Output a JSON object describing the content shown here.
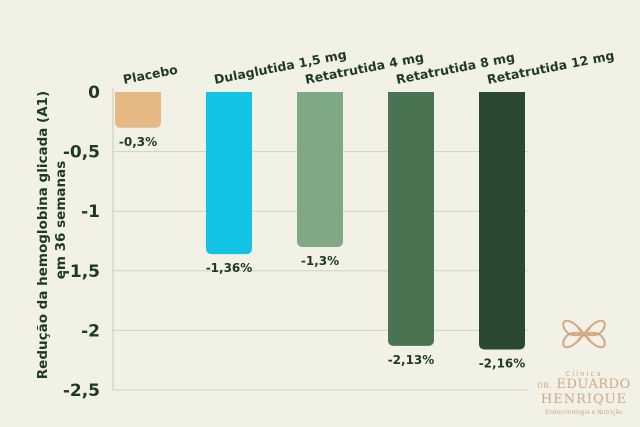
{
  "chart_data": {
    "type": "bar",
    "categories": [
      "Placebo",
      "Dulaglutida 1,5 mg",
      "Retatrutida 4 mg",
      "Retatrutida 8 mg",
      "Retatrutida 12 mg"
    ],
    "values": [
      -0.3,
      -1.36,
      -1.3,
      -2.13,
      -2.16
    ],
    "data_labels": [
      "-0,3%",
      "-1,36%",
      "-1,3%",
      "-2,13%",
      "-2,16%"
    ],
    "colors": [
      "#e4b984",
      "#12c3e3",
      "#7fa985",
      "#4a7451",
      "#2b4830"
    ],
    "ylabel": "Redução da hemoglobina glicada (A1) em 36 semanas",
    "ylim": [
      -2.5,
      0
    ],
    "yticks": [
      0,
      -0.5,
      -1,
      -1.5,
      -2,
      -2.5
    ],
    "ytick_labels": [
      "0",
      "-0,5",
      "-1",
      "-1,5",
      "-2",
      "-2,5"
    ],
    "grid": true,
    "legend": "none"
  },
  "logo": {
    "line1": "Clínica",
    "line2a": "DR.",
    "line2b": "EDUARDO",
    "line3": "HENRIQUE",
    "line4": "Endocrinologia e Nutrição"
  }
}
